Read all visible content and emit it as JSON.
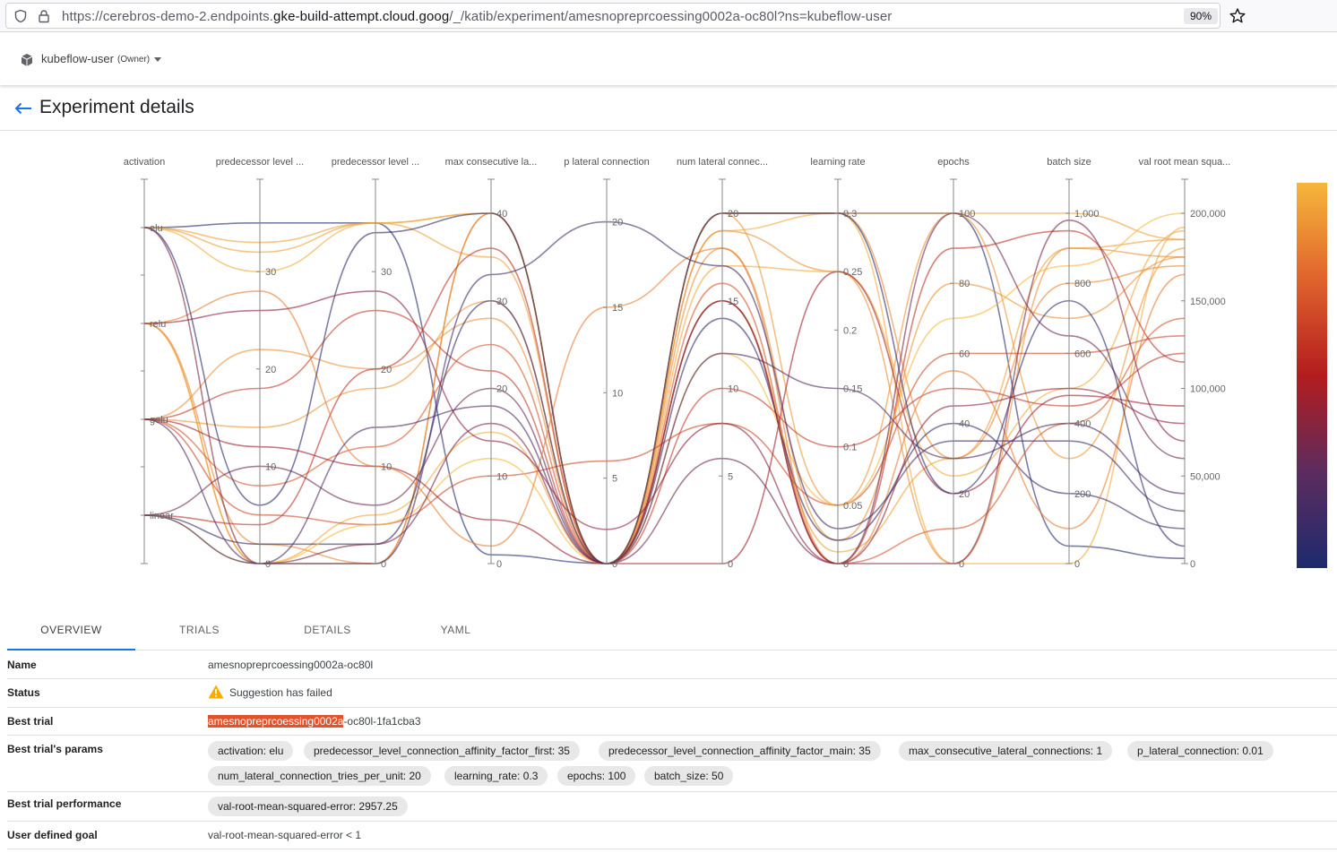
{
  "browser": {
    "url_prefix": "https://cerebros-demo-2.endpoints.",
    "url_domain": "gke-build-attempt.cloud.goog",
    "url_path": "/_/katib/experiment/amesnopreprcoessing0002a-oc80l?ns=kubeflow-user",
    "zoom": "90%"
  },
  "namespace": {
    "name": "kubeflow-user",
    "role": "(Owner)"
  },
  "page_title": "Experiment details",
  "chart_data": {
    "type": "parallel-coordinates",
    "dimensions": [
      {
        "label": "activation",
        "type": "categorical",
        "ticks": [
          "elu",
          "relu",
          "gelu",
          "linear"
        ]
      },
      {
        "label": "predecessor level ...",
        "range": [
          0,
          36
        ],
        "ticks": [
          0,
          10,
          20,
          30
        ]
      },
      {
        "label": "predecessor level ...",
        "range": [
          0,
          36
        ],
        "ticks": [
          0,
          10,
          20,
          30
        ]
      },
      {
        "label": "max consecutive la...",
        "range": [
          0,
          40
        ],
        "ticks": [
          0,
          10,
          20,
          30,
          40
        ]
      },
      {
        "label": "p lateral connection",
        "range": [
          0,
          20.5
        ],
        "ticks": [
          0,
          5,
          10,
          15,
          20
        ]
      },
      {
        "label": "num lateral connec...",
        "range": [
          0,
          20
        ],
        "ticks": [
          0,
          5,
          10,
          15,
          20
        ]
      },
      {
        "label": "learning rate",
        "range": [
          0,
          0.3
        ],
        "ticks": [
          0,
          0.05,
          0.1,
          0.15,
          0.2,
          0.25,
          0.3
        ]
      },
      {
        "label": "epochs",
        "range": [
          0,
          100
        ],
        "ticks": [
          0,
          20,
          40,
          60,
          80,
          100
        ]
      },
      {
        "label": "batch size",
        "range": [
          0,
          1000
        ],
        "ticks": [
          0,
          200,
          400,
          600,
          800,
          1000
        ]
      },
      {
        "label": "val root mean squa...",
        "range": [
          0,
          200000
        ],
        "ticks": [
          0,
          50000,
          100000,
          150000,
          200000
        ]
      }
    ],
    "tick_text": {
      "d1": [
        "0",
        "10",
        "20",
        "30"
      ],
      "d2": [
        "0",
        "10",
        "20",
        "30"
      ],
      "d3": [
        "0",
        "10",
        "20",
        "30",
        "40"
      ],
      "d4": [
        "0",
        "5",
        "10",
        "15",
        "20"
      ],
      "d5": [
        "0",
        "5",
        "10",
        "15",
        "20"
      ],
      "d6": [
        "0",
        "0.05",
        "0.1",
        "0.15",
        "0.2",
        "0.25",
        "0.3"
      ],
      "d7": [
        "0",
        "20",
        "40",
        "60",
        "80",
        "100"
      ],
      "d8": [
        "0",
        "200",
        "400",
        "600",
        "800",
        "1,000"
      ],
      "d9": [
        "0",
        "50,000",
        "100,000",
        "150,000",
        "200,000"
      ]
    },
    "colorscale": [
      "#f6b73a",
      "#e0632c",
      "#b31c1e",
      "#5c2c5e",
      "#1d2a6e"
    ],
    "trials": [
      [
        0,
        35,
        35,
        1,
        0.01,
        20,
        0.3,
        100,
        50,
        2957
      ],
      [
        0,
        33,
        35,
        40,
        0,
        20,
        0.3,
        100,
        1000,
        185000
      ],
      [
        0,
        32,
        35,
        35,
        0,
        15,
        0.01,
        30,
        900,
        185000
      ],
      [
        0,
        30,
        35,
        40,
        0,
        19,
        0.3,
        0,
        0,
        192000
      ],
      [
        1,
        0,
        0,
        40,
        0,
        19,
        0.25,
        0,
        900,
        175000
      ],
      [
        1,
        2,
        0,
        40,
        0,
        20,
        0.3,
        30,
        800,
        170000
      ],
      [
        1,
        0,
        5,
        15,
        0,
        17,
        0.25,
        25,
        500,
        190000
      ],
      [
        2,
        14,
        18,
        30,
        0,
        20,
        0.05,
        100,
        300,
        180000
      ],
      [
        2,
        22,
        20,
        28,
        0,
        18,
        0.02,
        80,
        700,
        175000
      ],
      [
        2,
        8,
        12,
        25,
        0,
        16,
        0.0,
        10,
        400,
        140000
      ],
      [
        2,
        5,
        4,
        10,
        6,
        8,
        0.05,
        60,
        600,
        130000
      ],
      [
        2,
        18,
        26,
        22,
        0,
        10,
        0.1,
        50,
        450,
        120000
      ],
      [
        2,
        12,
        10,
        5,
        0,
        0,
        0.25,
        20,
        480,
        90000
      ],
      [
        3,
        2,
        2,
        30,
        0,
        14,
        0.02,
        40,
        200,
        20000
      ],
      [
        3,
        4,
        20,
        36,
        0,
        15,
        0.0,
        90,
        950,
        115000
      ],
      [
        3,
        0,
        4,
        12,
        0,
        12,
        0.05,
        70,
        850,
        200000
      ],
      [
        3,
        10,
        6,
        20,
        0,
        6,
        0.0,
        100,
        650,
        60000
      ],
      [
        1,
        28,
        10,
        2,
        15,
        18,
        0.0,
        55,
        100,
        165000
      ],
      [
        0,
        6,
        34,
        40,
        0,
        20,
        0.3,
        20,
        750,
        10000
      ],
      [
        2,
        0,
        14,
        18,
        0,
        12,
        0.15,
        30,
        400,
        40000
      ],
      [
        3,
        0,
        0,
        33,
        20,
        17,
        0.03,
        35,
        350,
        30000
      ],
      [
        1,
        26,
        28,
        14,
        2,
        8,
        0.0,
        45,
        500,
        80000
      ],
      [
        0,
        0,
        2,
        16,
        0,
        15,
        0.0,
        0,
        980,
        70000
      ]
    ]
  },
  "tabs": [
    {
      "label": "OVERVIEW"
    },
    {
      "label": "TRIALS"
    },
    {
      "label": "DETAILS"
    },
    {
      "label": "YAML"
    }
  ],
  "overview": {
    "name_label": "Name",
    "name_value": "amesnopreprcoessing0002a-oc80l",
    "status_label": "Status",
    "status_value": "Suggestion has failed",
    "best_trial_label": "Best trial",
    "best_trial_highlight": "amesnopreprcoessing0002a",
    "best_trial_rest": "-oc80l-1fa1cba3",
    "params_label": "Best trial's params",
    "params": [
      "activation: elu",
      "predecessor_level_connection_affinity_factor_first: 35",
      "predecessor_level_connection_affinity_factor_main: 35",
      "max_consecutive_lateral_connections: 1",
      "p_lateral_connection: 0.01",
      "num_lateral_connection_tries_per_unit: 20",
      "learning_rate: 0.3",
      "epochs: 100",
      "batch_size: 50"
    ],
    "performance_label": "Best trial performance",
    "performance": [
      "val-root-mean-squared-error: 2957.25"
    ],
    "goal_label": "User defined goal",
    "goal_value": "val-root-mean-squared-error < 1"
  }
}
